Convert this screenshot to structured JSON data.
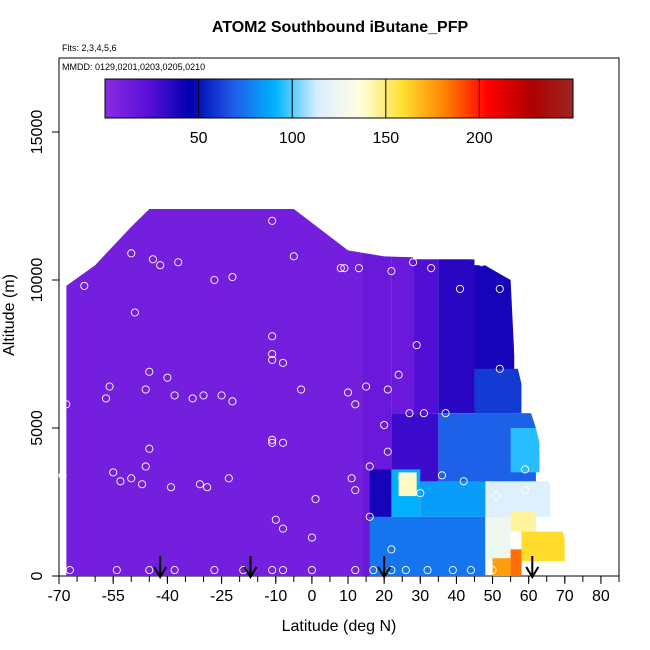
{
  "chart_data": {
    "type": "heatmap",
    "title": "ATOM2 Southbound iButane_PFP",
    "flights_note": "Flts: 2,3,4,5,6",
    "dates_note": "MMDD: 0129,0201,0203,0205,0210",
    "xlabel": "Latitude (deg N)",
    "ylabel": "Altitude (m)",
    "xlim": [
      -70,
      85
    ],
    "ylim": [
      0,
      17500
    ],
    "x_ticks": [
      -70,
      -55,
      -40,
      -25,
      -10,
      0,
      10,
      20,
      30,
      40,
      50,
      60,
      70,
      80
    ],
    "x_tick_labels": [
      "-70",
      "-55",
      "-40",
      "-25",
      "-10",
      "0",
      "10",
      "20",
      "30",
      "40",
      "50",
      "60",
      "70",
      "80"
    ],
    "y_ticks": [
      0,
      5000,
      10000,
      15000
    ],
    "y_tick_labels": [
      "0",
      "5000",
      "10000",
      "15000"
    ],
    "colorbar": {
      "min": 0,
      "max": 250,
      "ticks": [
        50,
        100,
        150,
        200
      ],
      "tick_labels": [
        "50",
        "100",
        "150",
        "200"
      ],
      "colors": [
        "#8a2be2",
        "#5a10d8",
        "#0000b0",
        "#1e5ae6",
        "#00b4ff",
        "#dceeff",
        "#ffffe0",
        "#ffe030",
        "#ff8000",
        "#ff0000",
        "#b00000",
        "#9e2424"
      ]
    },
    "flight_markers_lat": [
      -42,
      -17,
      20,
      61
    ],
    "domain_top": [
      {
        "lat": -68,
        "alt": 9800
      },
      {
        "lat": -60,
        "alt": 10500
      },
      {
        "lat": -50,
        "alt": 11800
      },
      {
        "lat": -45,
        "alt": 12400
      },
      {
        "lat": -5,
        "alt": 12400
      },
      {
        "lat": 10,
        "alt": 11000
      },
      {
        "lat": 20,
        "alt": 10800
      },
      {
        "lat": 45,
        "alt": 10700
      },
      {
        "lat": 55,
        "alt": 10000
      },
      {
        "lat": 56,
        "alt": 7500
      },
      {
        "lat": 58,
        "alt": 6500
      },
      {
        "lat": 62,
        "alt": 5000
      },
      {
        "lat": 66,
        "alt": 3000
      },
      {
        "lat": 71,
        "alt": 800
      }
    ],
    "cells": [
      {
        "lat0": -68,
        "lat1": 14,
        "alt0": 0,
        "alt1": 12400,
        "value": 10
      },
      {
        "lat0": 14,
        "lat1": 22,
        "alt0": 0,
        "alt1": 11000,
        "value": 15
      },
      {
        "lat0": 22,
        "lat1": 28,
        "alt0": 5500,
        "alt1": 10800,
        "value": 15
      },
      {
        "lat0": 28,
        "lat1": 35,
        "alt0": 5500,
        "alt1": 10700,
        "value": 25
      },
      {
        "lat0": 35,
        "lat1": 45,
        "alt0": 5500,
        "alt1": 10700,
        "value": 35
      },
      {
        "lat0": 45,
        "lat1": 56,
        "alt0": 5500,
        "alt1": 10500,
        "value": 40
      },
      {
        "lat0": 45,
        "lat1": 58,
        "alt0": 5500,
        "alt1": 7000,
        "value": 60
      },
      {
        "lat0": 22,
        "lat1": 35,
        "alt0": 3000,
        "alt1": 5500,
        "value": 30
      },
      {
        "lat0": 35,
        "lat1": 62,
        "alt0": 3000,
        "alt1": 5500,
        "value": 70
      },
      {
        "lat0": 55,
        "lat1": 63,
        "alt0": 3500,
        "alt1": 5000,
        "value": 95
      },
      {
        "lat0": 16,
        "lat1": 22,
        "alt0": 2000,
        "alt1": 3600,
        "value": 40
      },
      {
        "lat0": 22,
        "lat1": 30,
        "alt0": 2000,
        "alt1": 3600,
        "value": 90
      },
      {
        "lat0": 24,
        "lat1": 29,
        "alt0": 2700,
        "alt1": 3500,
        "value": 140
      },
      {
        "lat0": 30,
        "lat1": 50,
        "alt0": 2000,
        "alt1": 3200,
        "value": 85
      },
      {
        "lat0": 48,
        "lat1": 66,
        "alt0": 2000,
        "alt1": 3200,
        "value": 115
      },
      {
        "lat0": 16,
        "lat1": 48,
        "alt0": 0,
        "alt1": 2000,
        "value": 75
      },
      {
        "lat0": 48,
        "lat1": 55,
        "alt0": 500,
        "alt1": 2000,
        "value": 125
      },
      {
        "lat0": 55,
        "lat1": 62,
        "alt0": 1500,
        "alt1": 2200,
        "value": 145
      },
      {
        "lat0": 50,
        "lat1": 55,
        "alt0": 0,
        "alt1": 600,
        "value": 175
      },
      {
        "lat0": 55,
        "lat1": 58,
        "alt0": 0,
        "alt1": 900,
        "value": 185
      },
      {
        "lat0": 58,
        "lat1": 70,
        "alt0": 500,
        "alt1": 1500,
        "value": 160
      }
    ],
    "samples": [
      {
        "lat": -48,
        "alt": 12300
      },
      {
        "lat": -50,
        "alt": 10900
      },
      {
        "lat": -44,
        "alt": 10700
      },
      {
        "lat": -42,
        "alt": 10500
      },
      {
        "lat": -37,
        "alt": 10600
      },
      {
        "lat": -27,
        "alt": 10000
      },
      {
        "lat": -22,
        "alt": 10100
      },
      {
        "lat": -11,
        "alt": 12000
      },
      {
        "lat": -5,
        "alt": 10800
      },
      {
        "lat": -63,
        "alt": 9800
      },
      {
        "lat": -49,
        "alt": 8900
      },
      {
        "lat": 8,
        "alt": 10400
      },
      {
        "lat": 9,
        "alt": 10400
      },
      {
        "lat": 13,
        "alt": 10400
      },
      {
        "lat": 22,
        "alt": 10300
      },
      {
        "lat": 28,
        "alt": 10600
      },
      {
        "lat": 33,
        "alt": 10400
      },
      {
        "lat": 47,
        "alt": 10600
      },
      {
        "lat": 41,
        "alt": 9700
      },
      {
        "lat": 52,
        "alt": 9700
      },
      {
        "lat": -11,
        "alt": 8100
      },
      {
        "lat": -11,
        "alt": 7500
      },
      {
        "lat": -11,
        "alt": 7300
      },
      {
        "lat": -8,
        "alt": 7200
      },
      {
        "lat": -45,
        "alt": 6900
      },
      {
        "lat": -40,
        "alt": 6700
      },
      {
        "lat": -56,
        "alt": 6400
      },
      {
        "lat": -57,
        "alt": 6000
      },
      {
        "lat": -46,
        "alt": 6300
      },
      {
        "lat": -38,
        "alt": 6100
      },
      {
        "lat": -33,
        "alt": 6000
      },
      {
        "lat": -30,
        "alt": 6100
      },
      {
        "lat": -25,
        "alt": 6100
      },
      {
        "lat": -22,
        "alt": 5900
      },
      {
        "lat": -3,
        "alt": 6300
      },
      {
        "lat": 10,
        "alt": 6200
      },
      {
        "lat": 15,
        "alt": 6400
      },
      {
        "lat": 21,
        "alt": 6300
      },
      {
        "lat": 24,
        "alt": 6800
      },
      {
        "lat": 27,
        "alt": 5500
      },
      {
        "lat": 12,
        "alt": 5800
      },
      {
        "lat": 31,
        "alt": 5500
      },
      {
        "lat": 37,
        "alt": 5500
      },
      {
        "lat": 52,
        "alt": 7000
      },
      {
        "lat": 59,
        "alt": 6900
      },
      {
        "lat": 29,
        "alt": 7800
      },
      {
        "lat": 60,
        "alt": 5700
      },
      {
        "lat": 20,
        "alt": 5100
      },
      {
        "lat": -68,
        "alt": 5800
      },
      {
        "lat": -45,
        "alt": 4300
      },
      {
        "lat": -11,
        "alt": 4600
      },
      {
        "lat": -11,
        "alt": 4500
      },
      {
        "lat": -8,
        "alt": 4500
      },
      {
        "lat": -46,
        "alt": 3700
      },
      {
        "lat": -55,
        "alt": 3500
      },
      {
        "lat": -53,
        "alt": 3200
      },
      {
        "lat": -50,
        "alt": 3300
      },
      {
        "lat": -47,
        "alt": 3100
      },
      {
        "lat": -39,
        "alt": 3000
      },
      {
        "lat": -31,
        "alt": 3100
      },
      {
        "lat": -29,
        "alt": 3000
      },
      {
        "lat": -23,
        "alt": 3300
      },
      {
        "lat": -69,
        "alt": 3400
      },
      {
        "lat": 11,
        "alt": 3300
      },
      {
        "lat": 16,
        "alt": 3700
      },
      {
        "lat": 21,
        "alt": 4200
      },
      {
        "lat": 25,
        "alt": 3300
      },
      {
        "lat": 30,
        "alt": 2800
      },
      {
        "lat": 36,
        "alt": 3400
      },
      {
        "lat": 42,
        "alt": 3200
      },
      {
        "lat": 51,
        "alt": 2700
      },
      {
        "lat": 59,
        "alt": 3600
      },
      {
        "lat": 59,
        "alt": 2900
      },
      {
        "lat": 64,
        "alt": 4300
      },
      {
        "lat": 12,
        "alt": 2900
      },
      {
        "lat": -10,
        "alt": 1900
      },
      {
        "lat": -8,
        "alt": 1600
      },
      {
        "lat": 1,
        "alt": 2600
      },
      {
        "lat": 0,
        "alt": 1300
      },
      {
        "lat": 16,
        "alt": 2000
      },
      {
        "lat": 22,
        "alt": 900
      },
      {
        "lat": -67,
        "alt": 200
      },
      {
        "lat": -54,
        "alt": 200
      },
      {
        "lat": -45,
        "alt": 200
      },
      {
        "lat": -38,
        "alt": 200
      },
      {
        "lat": -27,
        "alt": 200
      },
      {
        "lat": -19,
        "alt": 200
      },
      {
        "lat": -11,
        "alt": 200
      },
      {
        "lat": -8,
        "alt": 200
      },
      {
        "lat": 0,
        "alt": 200
      },
      {
        "lat": 12,
        "alt": 200
      },
      {
        "lat": 17,
        "alt": 200
      },
      {
        "lat": 22,
        "alt": 200
      },
      {
        "lat": 26,
        "alt": 200
      },
      {
        "lat": 32,
        "alt": 200
      },
      {
        "lat": 39,
        "alt": 200
      },
      {
        "lat": 44,
        "alt": 200
      },
      {
        "lat": 50,
        "alt": 200
      }
    ]
  }
}
